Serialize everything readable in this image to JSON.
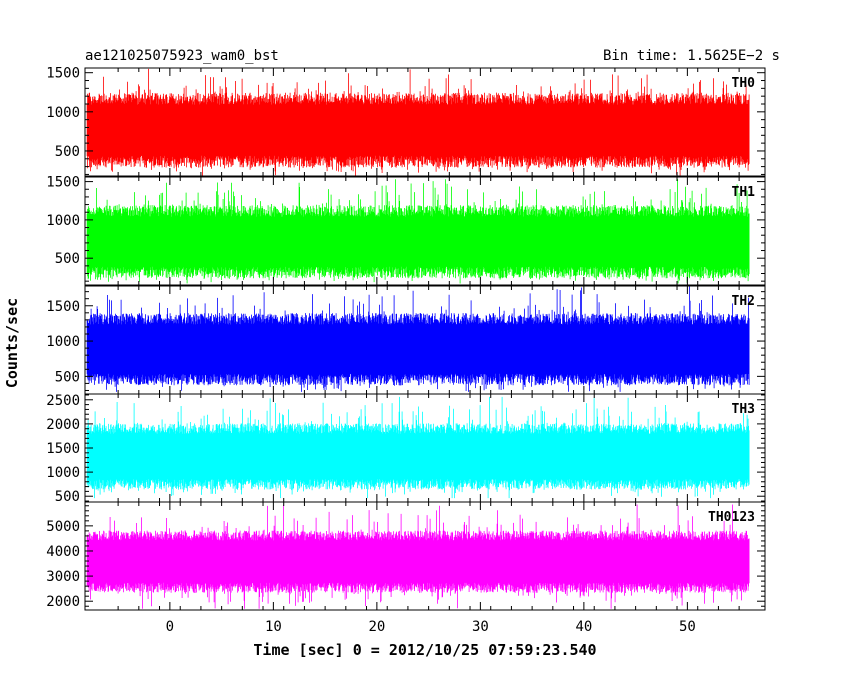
{
  "header": {
    "title": "ae121025075923_wam0_bst",
    "bin_time": "Bin time: 1.5625E−2 s"
  },
  "chart_data": {
    "type": "line",
    "title": "ae121025075923_wam0_bst",
    "xlabel": "Time [sec] 0 = 2012/10/25 07:59:23.540",
    "ylabel": "Counts/sec",
    "xlim": [
      -8.2,
      57.5
    ],
    "x_ticks": [
      0,
      10,
      20,
      30,
      40,
      50
    ],
    "x_tick_labels": [
      "0",
      "10",
      "20",
      "30",
      "40",
      "50"
    ],
    "data_x_range": [
      -8.0,
      56.0
    ],
    "panels": [
      {
        "name": "TH0",
        "color": "#ff0000",
        "ylim": [
          180,
          1560
        ],
        "ticks": [
          500,
          1000,
          1500
        ],
        "tick_labels": [
          "500",
          "1000",
          "1500"
        ],
        "typical_range": [
          330,
          1200
        ],
        "min": 180,
        "max": 1560
      },
      {
        "name": "TH1",
        "color": "#00ff00",
        "ylim": [
          150,
          1560
        ],
        "ticks": [
          500,
          1000,
          1500
        ],
        "tick_labels": [
          "500",
          "1000",
          "1500"
        ],
        "typical_range": [
          280,
          1150
        ],
        "min": 170,
        "max": 1530
      },
      {
        "name": "TH2",
        "color": "#0000ff",
        "ylim": [
          250,
          1780
        ],
        "ticks": [
          500,
          1000,
          1500
        ],
        "tick_labels": [
          "500",
          "1000",
          "1500"
        ],
        "typical_range": [
          420,
          1350
        ],
        "min": 280,
        "max": 1780
      },
      {
        "name": "TH3",
        "color": "#00ffff",
        "ylim": [
          380,
          2620
        ],
        "ticks": [
          500,
          1000,
          1500,
          2000,
          2500
        ],
        "tick_labels": [
          "500",
          "1000",
          "1500",
          "2000",
          "2500"
        ],
        "typical_range": [
          700,
          1950
        ],
        "min": 460,
        "max": 2560
      },
      {
        "name": "TH0123",
        "color": "#ff00ff",
        "ylim": [
          1650,
          5950
        ],
        "ticks": [
          2000,
          3000,
          4000,
          5000
        ],
        "tick_labels": [
          "2000",
          "3000",
          "4000",
          "5000"
        ],
        "typical_range": [
          2450,
          4700
        ],
        "min": 1700,
        "max": 5850
      }
    ],
    "grid": false
  }
}
